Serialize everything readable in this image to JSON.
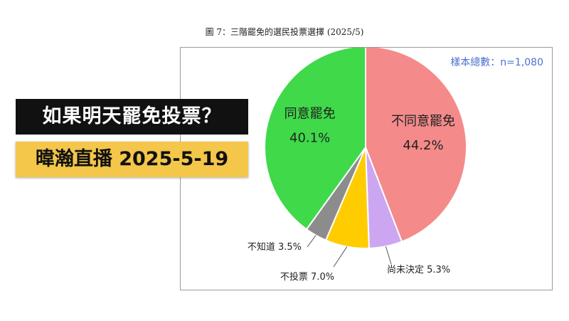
{
  "figure_title": "圖 7：三階罷免的選民投票選擇 (2025/5)",
  "banner": {
    "headline": "如果明天罷免投票？",
    "subline": "暐瀚直播 2025-5-19"
  },
  "chart_data": {
    "type": "pie",
    "title": "圖 7：三階罷免的選民投票選擇 (2025/5)",
    "annotation": "樣本總數：n=1,080",
    "slices": [
      {
        "label": "不同意罷免",
        "value": 44.2,
        "value_text": "44.2%",
        "color": "#f48a8a",
        "label_style": "inside"
      },
      {
        "label": "尚未決定",
        "value": 5.3,
        "value_text": "5.3%",
        "color": "#cda6f2",
        "label_style": "outside"
      },
      {
        "label": "不投票",
        "value": 7.0,
        "value_text": "7.0%",
        "color": "#ffcc00",
        "label_style": "outside"
      },
      {
        "label": "不知道",
        "value": 3.5,
        "value_text": "3.5%",
        "color": "#8c8c8c",
        "label_style": "outside"
      },
      {
        "label": "同意罷免",
        "value": 40.1,
        "value_text": "40.1%",
        "color": "#3fd94a",
        "label_style": "inside"
      }
    ]
  }
}
